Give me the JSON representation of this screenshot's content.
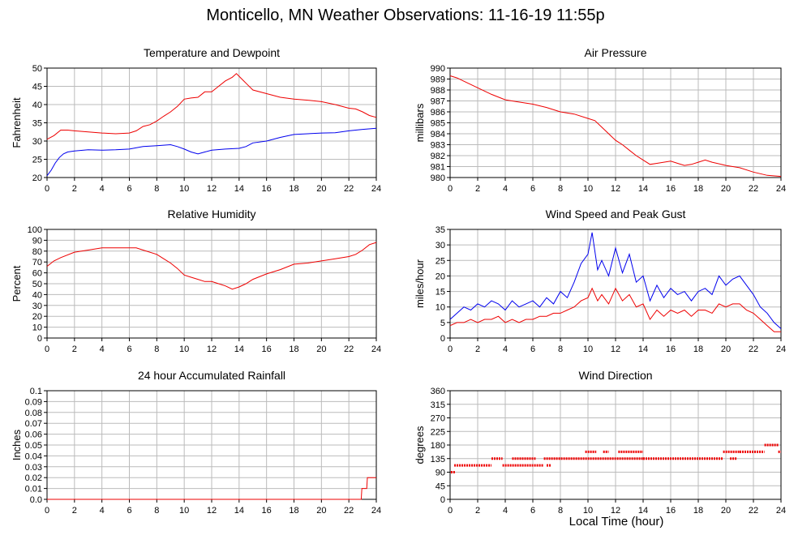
{
  "page": {
    "title": "Monticello, MN Weather Observations: 11-16-19 11:55p",
    "xlabel": "Local Time (hour)"
  },
  "colors": {
    "red": "#ee0000",
    "blue": "#0000ee",
    "grid": "#bbbbbb"
  },
  "chart_data": [
    {
      "type": "line",
      "title": "Temperature and Dewpoint",
      "ylabel": "Fahrenheit",
      "xlim": [
        0,
        24
      ],
      "ylim": [
        20,
        50
      ],
      "xticks": [
        0,
        2,
        4,
        6,
        8,
        10,
        12,
        14,
        16,
        18,
        20,
        22,
        24
      ],
      "yticks": [
        20,
        25,
        30,
        35,
        40,
        45,
        50
      ],
      "series": [
        {
          "color": "red",
          "x": [
            0,
            0.5,
            1,
            1.5,
            2,
            3,
            4,
            5,
            6,
            6.5,
            7,
            7.5,
            8,
            8.5,
            9,
            9.5,
            10,
            10.5,
            11,
            11.5,
            12,
            12.5,
            13,
            13.5,
            13.8,
            14.2,
            14.6,
            15,
            16,
            17,
            18,
            19,
            20,
            21,
            22,
            22.5,
            23,
            23.5,
            24
          ],
          "y": [
            30.5,
            31.5,
            33,
            33,
            32.8,
            32.5,
            32.2,
            32,
            32.2,
            32.8,
            34,
            34.5,
            35.5,
            36.8,
            38,
            39.5,
            41.5,
            41.8,
            42,
            43.5,
            43.5,
            45,
            46.5,
            47.5,
            48.5,
            47,
            45.5,
            44,
            43,
            42,
            41.5,
            41.2,
            40.8,
            40,
            39,
            38.8,
            38,
            37,
            36.5
          ]
        },
        {
          "color": "blue",
          "x": [
            0,
            0.3,
            0.6,
            0.9,
            1.2,
            1.5,
            2,
            3,
            4,
            5,
            6,
            7,
            8,
            9,
            9.5,
            10,
            10.5,
            11,
            11.5,
            12,
            13,
            14,
            14.5,
            15,
            16,
            17,
            18,
            19,
            20,
            21,
            22,
            23,
            24
          ],
          "y": [
            20.5,
            22,
            24,
            25.5,
            26.5,
            27,
            27.3,
            27.6,
            27.5,
            27.6,
            27.8,
            28.5,
            28.7,
            29,
            28.5,
            27.8,
            27,
            26.5,
            27,
            27.5,
            27.8,
            28,
            28.5,
            29.5,
            30,
            31,
            31.8,
            32,
            32.2,
            32.3,
            32.8,
            33.2,
            33.5
          ]
        }
      ]
    },
    {
      "type": "line",
      "title": "Air Pressure",
      "ylabel": "millibars",
      "xlim": [
        0,
        24
      ],
      "ylim": [
        980,
        990
      ],
      "xticks": [
        0,
        2,
        4,
        6,
        8,
        10,
        12,
        14,
        16,
        18,
        20,
        22,
        24
      ],
      "yticks": [
        980,
        981,
        982,
        983,
        984,
        985,
        986,
        987,
        988,
        989,
        990
      ],
      "series": [
        {
          "color": "red",
          "x": [
            0,
            0.5,
            1,
            2,
            3,
            4,
            5,
            6,
            7,
            8,
            9,
            10,
            10.5,
            11,
            11.5,
            12,
            12.5,
            13,
            13.5,
            14,
            14.5,
            15,
            16,
            16.5,
            17,
            17.5,
            18,
            18.5,
            19,
            20,
            21,
            22,
            23,
            24
          ],
          "y": [
            989.3,
            989.1,
            988.8,
            988.2,
            987.6,
            987.1,
            986.9,
            986.7,
            986.4,
            986,
            985.8,
            985.4,
            985.2,
            984.6,
            984,
            983.4,
            983,
            982.5,
            982,
            981.6,
            981.2,
            981.3,
            981.5,
            981.3,
            981.1,
            981.2,
            981.4,
            981.6,
            981.4,
            981.1,
            980.9,
            980.5,
            980.2,
            980.1
          ]
        }
      ]
    },
    {
      "type": "line",
      "title": "Relative Humidity",
      "ylabel": "Percent",
      "xlim": [
        0,
        24
      ],
      "ylim": [
        0,
        100
      ],
      "xticks": [
        0,
        2,
        4,
        6,
        8,
        10,
        12,
        14,
        16,
        18,
        20,
        22,
        24
      ],
      "yticks": [
        0,
        10,
        20,
        30,
        40,
        50,
        60,
        70,
        80,
        90,
        100
      ],
      "series": [
        {
          "color": "red",
          "x": [
            0,
            0.5,
            1,
            2,
            3,
            4,
            5,
            6,
            6.5,
            7,
            8,
            8.5,
            9,
            9.5,
            10,
            10.5,
            11,
            11.5,
            12,
            12.5,
            13,
            13.5,
            14,
            14.5,
            15,
            16,
            17,
            18,
            19,
            20,
            21,
            22,
            22.5,
            23,
            23.5,
            24
          ],
          "y": [
            66,
            71,
            74,
            79,
            81,
            83,
            83,
            83,
            83,
            81,
            77,
            73,
            69,
            64,
            58,
            56,
            54,
            52,
            52,
            50,
            48,
            45,
            47,
            50,
            54,
            59,
            63,
            68,
            69,
            71,
            73,
            75,
            77,
            81,
            86,
            88
          ]
        }
      ]
    },
    {
      "type": "line",
      "title": "Wind Speed and Peak Gust",
      "ylabel": "miles/hour",
      "xlim": [
        0,
        24
      ],
      "ylim": [
        0,
        35
      ],
      "xticks": [
        0,
        2,
        4,
        6,
        8,
        10,
        12,
        14,
        16,
        18,
        20,
        22,
        24
      ],
      "yticks": [
        0,
        5,
        10,
        15,
        20,
        25,
        30,
        35
      ],
      "series": [
        {
          "color": "blue",
          "x": [
            0,
            0.5,
            1,
            1.5,
            2,
            2.5,
            3,
            3.5,
            4,
            4.5,
            5,
            5.5,
            6,
            6.5,
            7,
            7.5,
            8,
            8.5,
            9,
            9.5,
            10,
            10.3,
            10.7,
            11,
            11.5,
            12,
            12.5,
            13,
            13.5,
            14,
            14.5,
            15,
            15.5,
            16,
            16.5,
            17,
            17.5,
            18,
            18.5,
            19,
            19.5,
            20,
            20.5,
            21,
            21.5,
            22,
            22.5,
            23,
            23.5,
            24
          ],
          "y": [
            6,
            8,
            10,
            9,
            11,
            10,
            12,
            11,
            9,
            12,
            10,
            11,
            12,
            10,
            13,
            11,
            15,
            13,
            18,
            24,
            27,
            34,
            22,
            25,
            20,
            29,
            21,
            27,
            18,
            20,
            12,
            17,
            13,
            16,
            14,
            15,
            12,
            15,
            16,
            14,
            20,
            17,
            19,
            20,
            17,
            14,
            10,
            8,
            5,
            3
          ]
        },
        {
          "color": "red",
          "x": [
            0,
            0.5,
            1,
            1.5,
            2,
            2.5,
            3,
            3.5,
            4,
            4.5,
            5,
            5.5,
            6,
            6.5,
            7,
            7.5,
            8,
            8.5,
            9,
            9.5,
            10,
            10.3,
            10.7,
            11,
            11.5,
            12,
            12.5,
            13,
            13.5,
            14,
            14.5,
            15,
            15.5,
            16,
            16.5,
            17,
            17.5,
            18,
            18.5,
            19,
            19.5,
            20,
            20.5,
            21,
            21.5,
            22,
            22.5,
            23,
            23.5,
            24
          ],
          "y": [
            4,
            5,
            5,
            6,
            5,
            6,
            6,
            7,
            5,
            6,
            5,
            6,
            6,
            7,
            7,
            8,
            8,
            9,
            10,
            12,
            13,
            16,
            12,
            14,
            11,
            16,
            12,
            14,
            10,
            11,
            6,
            9,
            7,
            9,
            8,
            9,
            7,
            9,
            9,
            8,
            11,
            10,
            11,
            11,
            9,
            8,
            6,
            4,
            2,
            2
          ]
        }
      ]
    },
    {
      "type": "line",
      "title": "24 hour Accumulated Rainfall",
      "ylabel": "Inches",
      "xlim": [
        0,
        24
      ],
      "ylim": [
        0,
        0.1
      ],
      "xticks": [
        0,
        2,
        4,
        6,
        8,
        10,
        12,
        14,
        16,
        18,
        20,
        22,
        24
      ],
      "yticks": [
        0.0,
        0.01,
        0.02,
        0.03,
        0.04,
        0.05,
        0.06,
        0.07,
        0.08,
        0.09,
        0.1
      ],
      "ytick_labels": [
        "0.0",
        "0.01",
        "0.02",
        "0.03",
        "0.04",
        "0.05",
        "0.06",
        "0.07",
        "0.08",
        "0.09",
        "0.1"
      ],
      "series": [
        {
          "color": "red",
          "x": [
            0,
            22.9,
            22.95,
            23.3,
            23.35,
            24
          ],
          "y": [
            0,
            0,
            0.01,
            0.01,
            0.02,
            0.02
          ]
        }
      ]
    },
    {
      "type": "scatter",
      "title": "Wind Direction",
      "ylabel": "degrees",
      "xlim": [
        0,
        24
      ],
      "ylim": [
        0,
        360
      ],
      "xticks": [
        0,
        2,
        4,
        6,
        8,
        10,
        12,
        14,
        16,
        18,
        20,
        22,
        24
      ],
      "yticks": [
        0,
        45,
        90,
        135,
        180,
        225,
        270,
        315,
        360
      ],
      "segments": [
        {
          "color": "red",
          "x0": 0.05,
          "x1": 0.35,
          "y": 90
        },
        {
          "color": "red",
          "x0": 0.3,
          "x1": 3.0,
          "y": 112.5
        },
        {
          "color": "red",
          "x0": 3.0,
          "x1": 3.8,
          "y": 135
        },
        {
          "color": "red",
          "x0": 3.8,
          "x1": 6.8,
          "y": 112.5
        },
        {
          "color": "red",
          "x0": 4.5,
          "x1": 6.2,
          "y": 135
        },
        {
          "color": "red",
          "x0": 6.8,
          "x1": 14.1,
          "y": 135
        },
        {
          "color": "red",
          "x0": 7.0,
          "x1": 7.3,
          "y": 112.5
        },
        {
          "color": "red",
          "x0": 9.8,
          "x1": 10.6,
          "y": 157.5
        },
        {
          "color": "red",
          "x0": 11.1,
          "x1": 11.5,
          "y": 157.5
        },
        {
          "color": "red",
          "x0": 12.2,
          "x1": 14.0,
          "y": 157.5
        },
        {
          "color": "red",
          "x0": 14.0,
          "x1": 19.8,
          "y": 135
        },
        {
          "color": "red",
          "x0": 19.8,
          "x1": 21.0,
          "y": 157.5
        },
        {
          "color": "red",
          "x0": 20.3,
          "x1": 20.8,
          "y": 135
        },
        {
          "color": "red",
          "x0": 21.0,
          "x1": 22.8,
          "y": 157.5
        },
        {
          "color": "red",
          "x0": 22.8,
          "x1": 23.8,
          "y": 180
        },
        {
          "color": "red",
          "x0": 23.8,
          "x1": 24,
          "y": 157.5
        }
      ]
    }
  ]
}
